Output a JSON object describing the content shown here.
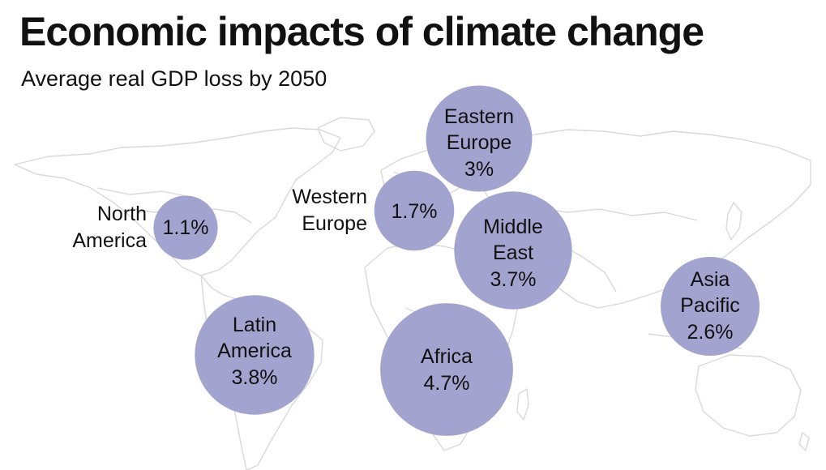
{
  "title": "Economic impacts of climate change",
  "subtitle": "Average real GDP loss by 2050",
  "chart_data": {
    "type": "bubble-map",
    "value_unit": "%",
    "bubble_color": "#a3a3cf",
    "regions": [
      {
        "label_lines": [
          "North",
          "America"
        ],
        "value_label": "1.1%",
        "value": 1.1
      },
      {
        "label_lines": [
          "Western",
          "Europe"
        ],
        "value_label": "1.7%",
        "value": 1.7
      },
      {
        "label_lines": [
          "Eastern",
          "Europe"
        ],
        "value_label": "3%",
        "value": 3.0
      },
      {
        "label_lines": [
          "Middle",
          "East"
        ],
        "value_label": "3.7%",
        "value": 3.7
      },
      {
        "label_lines": [
          "Latin",
          "America"
        ],
        "value_label": "3.8%",
        "value": 3.8
      },
      {
        "label_lines": [
          "Africa"
        ],
        "value_label": "4.7%",
        "value": 4.7
      },
      {
        "label_lines": [
          "Asia",
          "Pacific"
        ],
        "value_label": "2.6%",
        "value": 2.6
      }
    ]
  }
}
